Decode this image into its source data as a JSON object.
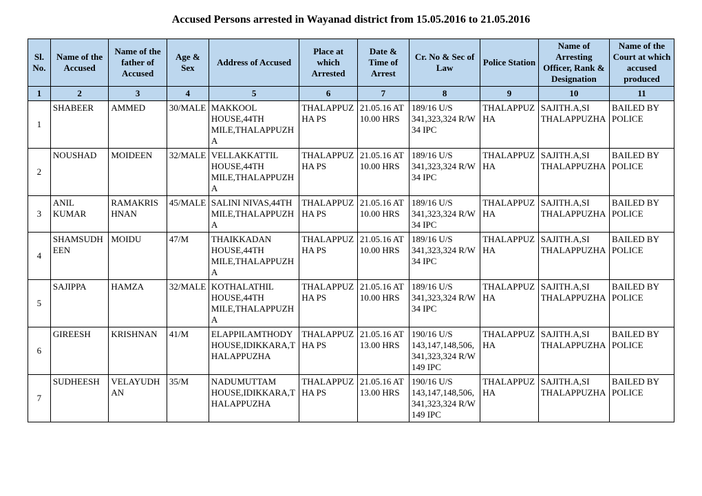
{
  "title": "Accused Persons arrested in   Wayanad   district from   15.05.2016 to 21.05.2016",
  "headers": [
    "Sl. No.",
    "Name of the Accused",
    "Name of the father of Accused",
    "Age & Sex",
    "Address of Accused",
    "Place at which Arrested",
    "Date & Time of Arrest",
    "Cr. No & Sec of Law",
    "Police Station",
    "Name of Arresting Officer, Rank & Designation",
    "Name of the Court at which accused produced"
  ],
  "numrow": [
    "1",
    "2",
    "3",
    "4",
    "5",
    "6",
    "7",
    "8",
    "9",
    "10",
    "11"
  ],
  "rows": [
    {
      "sl": "1",
      "name": "SHABEER",
      "father": "AMMED",
      "age": "30/MALE",
      "addr": "MAKKOOL HOUSE,44TH MILE,THALAPPUZHA",
      "place": "THALAPPUZHA PS",
      "dt": "21.05.16 AT 10.00 HRS",
      "cr": "189/16 U/S 341,323,324 R/W 34 IPC",
      "ps": "THALAPPUZHA",
      "officer": "SAJITH.A,SI THALAPPUZHA",
      "court": "BAILED BY POLICE"
    },
    {
      "sl": "2",
      "name": "NOUSHAD",
      "father": "MOIDEEN",
      "age": "32/MALE",
      "addr": "VELLAKKATTIL HOUSE,44TH MILE,THALAPPUZHA",
      "place": "THALAPPUZHA PS",
      "dt": "21.05.16 AT 10.00 HRS",
      "cr": "189/16 U/S 341,323,324 R/W 34 IPC",
      "ps": "THALAPPUZHA",
      "officer": "SAJITH.A,SI THALAPPUZHA",
      "court": "BAILED BY POLICE"
    },
    {
      "sl": "3",
      "name": "ANIL KUMAR",
      "father": "RAMAKRISHNAN",
      "age": "45/MALE",
      "addr": "SALINI NIVAS,44TH MILE,THALAPPUZHA",
      "place": "THALAPPUZHA PS",
      "dt": "21.05.16 AT 10.00 HRS",
      "cr": "189/16 U/S 341,323,324 R/W 34 IPC",
      "ps": "THALAPPUZHA",
      "officer": "SAJITH.A,SI THALAPPUZHA",
      "court": "BAILED BY POLICE"
    },
    {
      "sl": "4",
      "name": "SHAMSUDHEEN",
      "father": "MOIDU",
      "age": "47/M",
      "addr": "THAIKKADAN HOUSE,44TH MILE,THALAPPUZHA",
      "place": "THALAPPUZHA PS",
      "dt": "21.05.16 AT 10.00 HRS",
      "cr": "189/16 U/S 341,323,324 R/W 34 IPC",
      "ps": "THALAPPUZHA",
      "officer": "SAJITH.A,SI THALAPPUZHA",
      "court": "BAILED BY POLICE"
    },
    {
      "sl": "5",
      "name": "SAJIPPA",
      "father": "HAMZA",
      "age": "32/MALE",
      "addr": "KOTHALATHIL HOUSE,44TH MILE,THALAPPUZHA",
      "place": "THALAPPUZHA PS",
      "dt": "21.05.16 AT 10.00 HRS",
      "cr": "189/16 U/S 341,323,324 R/W 34 IPC",
      "ps": "THALAPPUZHA",
      "officer": "SAJITH.A,SI THALAPPUZHA",
      "court": "BAILED BY POLICE"
    },
    {
      "sl": "6",
      "name": "GIREESH",
      "father": "KRISHNAN",
      "age": "41/M",
      "addr": "ELAPPILAMTHODY HOUSE,IDIKKARA,THALAPPUZHA",
      "place": "THALAPPUZHA PS",
      "dt": "21.05.16 AT 13.00 HRS",
      "cr": "190/16 U/S 143,147,148,506,341,323,324 R/W 149 IPC",
      "ps": "THALAPPUZHA",
      "officer": "SAJITH.A,SI THALAPPUZHA",
      "court": "BAILED BY POLICE"
    },
    {
      "sl": "7",
      "name": "SUDHEESH",
      "father": "VELAYUDHAN",
      "age": "35/M",
      "addr": "NADUMUTTAM HOUSE,IDIKKARA,THALAPPUZHA",
      "place": "THALAPPUZHA PS",
      "dt": "21.05.16 AT 13.00 HRS",
      "cr": "190/16 U/S 143,147,148,506,341,323,324 R/W 149 IPC",
      "ps": "THALAPPUZHA",
      "officer": "SAJITH.A,SI THALAPPUZHA",
      "court": "BAILED BY POLICE"
    }
  ]
}
